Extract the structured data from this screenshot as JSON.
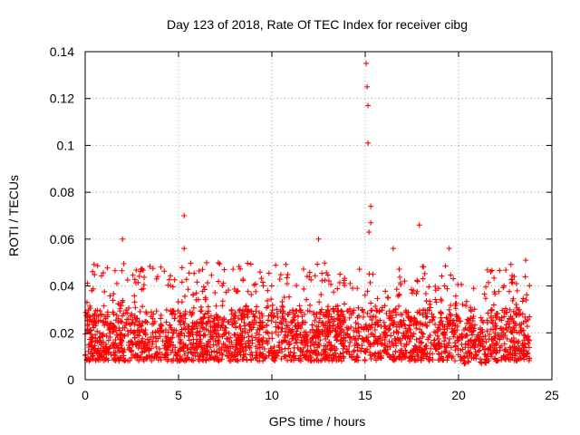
{
  "chart_data": {
    "type": "scatter",
    "title": "Day 123 of 2018, Rate Of TEC Index for receiver cibg",
    "xlabel": "GPS time / hours",
    "ylabel": "ROTI / TECUs",
    "xlim": [
      0,
      25
    ],
    "ylim": [
      0,
      0.14
    ],
    "xticks": [
      "0",
      "5",
      "10",
      "15",
      "20",
      "25"
    ],
    "yticks": [
      "0",
      "0.02",
      "0.04",
      "0.06",
      "0.08",
      "0.1",
      "0.12",
      "0.14"
    ],
    "grid": true,
    "marker": "+",
    "color": "#ff0000",
    "series": [
      {
        "name": "ROTI cibg",
        "x_range_hours": [
          0,
          23.8
        ],
        "typical_band": [
          0.008,
          0.03
        ],
        "outliers": [
          {
            "x": 2.0,
            "y": 0.06
          },
          {
            "x": 5.3,
            "y": 0.07
          },
          {
            "x": 5.3,
            "y": 0.056
          },
          {
            "x": 12.5,
            "y": 0.06
          },
          {
            "x": 15.05,
            "y": 0.135
          },
          {
            "x": 15.1,
            "y": 0.125
          },
          {
            "x": 15.15,
            "y": 0.117
          },
          {
            "x": 15.15,
            "y": 0.101
          },
          {
            "x": 15.3,
            "y": 0.074
          },
          {
            "x": 15.3,
            "y": 0.067
          },
          {
            "x": 15.2,
            "y": 0.063
          },
          {
            "x": 17.9,
            "y": 0.066
          },
          {
            "x": 19.5,
            "y": 0.056
          },
          {
            "x": 16.5,
            "y": 0.056
          },
          {
            "x": 23.6,
            "y": 0.051
          }
        ]
      }
    ]
  }
}
